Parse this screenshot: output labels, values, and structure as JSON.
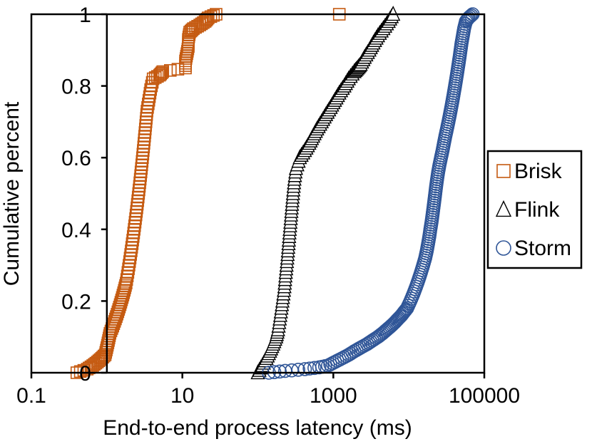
{
  "chart_data": {
    "type": "scatter",
    "title": "",
    "xlabel": "End-to-end process latency (ms)",
    "ylabel": "Cumulative percent",
    "xscale": "log",
    "xlim": [
      0.1,
      100000
    ],
    "ylim": [
      0,
      1
    ],
    "x_ticks": [
      0.1,
      10,
      1000,
      100000
    ],
    "x_tick_labels": [
      "0.1",
      "10",
      "1000",
      "100000"
    ],
    "y_ticks": [
      0,
      0.2,
      0.4,
      0.6,
      0.8,
      1
    ],
    "y_tick_labels": [
      "0",
      "0.2",
      "0.4",
      "0.6",
      "0.8",
      "1"
    ],
    "y_axis_crossing_x": 1,
    "legend_position": "right",
    "series": [
      {
        "name": "Brisk",
        "marker": "square",
        "color": "#C55A11",
        "points": [
          [
            0.4,
            0.0
          ],
          [
            0.55,
            0.01
          ],
          [
            0.65,
            0.02
          ],
          [
            0.75,
            0.03
          ],
          [
            0.85,
            0.04
          ],
          [
            0.95,
            0.05
          ],
          [
            1.0,
            0.07
          ],
          [
            1.05,
            0.09
          ],
          [
            1.1,
            0.11
          ],
          [
            1.2,
            0.13
          ],
          [
            1.3,
            0.15
          ],
          [
            1.4,
            0.17
          ],
          [
            1.5,
            0.19
          ],
          [
            1.6,
            0.21
          ],
          [
            1.7,
            0.23
          ],
          [
            1.8,
            0.25
          ],
          [
            1.9,
            0.28
          ],
          [
            2.0,
            0.31
          ],
          [
            2.1,
            0.34
          ],
          [
            2.2,
            0.37
          ],
          [
            2.3,
            0.4
          ],
          [
            2.4,
            0.43
          ],
          [
            2.5,
            0.46
          ],
          [
            2.6,
            0.49
          ],
          [
            2.7,
            0.52
          ],
          [
            2.8,
            0.55
          ],
          [
            2.9,
            0.58
          ],
          [
            3.0,
            0.61
          ],
          [
            3.1,
            0.64
          ],
          [
            3.2,
            0.67
          ],
          [
            3.3,
            0.7
          ],
          [
            3.4,
            0.73
          ],
          [
            3.6,
            0.76
          ],
          [
            3.8,
            0.79
          ],
          [
            4.1,
            0.82
          ],
          [
            5.0,
            0.83
          ],
          [
            5.5,
            0.84
          ],
          [
            11,
            0.85
          ],
          [
            11,
            0.87
          ],
          [
            11.5,
            0.89
          ],
          [
            12,
            0.91
          ],
          [
            12,
            0.93
          ],
          [
            12.5,
            0.95
          ],
          [
            14,
            0.96
          ],
          [
            17,
            0.97
          ],
          [
            20,
            0.98
          ],
          [
            22,
            0.99
          ],
          [
            28,
            1.0
          ],
          [
            1200,
            1.0
          ]
        ]
      },
      {
        "name": "Flink",
        "marker": "triangle",
        "color": "#000000",
        "points": [
          [
            100,
            0.0
          ],
          [
            115,
            0.02
          ],
          [
            130,
            0.04
          ],
          [
            145,
            0.06
          ],
          [
            160,
            0.08
          ],
          [
            175,
            0.1
          ],
          [
            185,
            0.12
          ],
          [
            195,
            0.15
          ],
          [
            205,
            0.18
          ],
          [
            215,
            0.21
          ],
          [
            225,
            0.24
          ],
          [
            232,
            0.27
          ],
          [
            240,
            0.3
          ],
          [
            248,
            0.33
          ],
          [
            255,
            0.36
          ],
          [
            262,
            0.39
          ],
          [
            270,
            0.42
          ],
          [
            278,
            0.45
          ],
          [
            286,
            0.48
          ],
          [
            295,
            0.51
          ],
          [
            305,
            0.54
          ],
          [
            320,
            0.57
          ],
          [
            360,
            0.6
          ],
          [
            420,
            0.62
          ],
          [
            480,
            0.64
          ],
          [
            540,
            0.66
          ],
          [
            610,
            0.68
          ],
          [
            700,
            0.7
          ],
          [
            800,
            0.72
          ],
          [
            920,
            0.74
          ],
          [
            1050,
            0.76
          ],
          [
            1200,
            0.78
          ],
          [
            1400,
            0.8
          ],
          [
            1600,
            0.82
          ],
          [
            1900,
            0.84
          ],
          [
            2100,
            0.85
          ],
          [
            2300,
            0.86
          ],
          [
            2600,
            0.88
          ],
          [
            3000,
            0.9
          ],
          [
            3400,
            0.92
          ],
          [
            3900,
            0.94
          ],
          [
            4600,
            0.96
          ],
          [
            5400,
            0.98
          ],
          [
            6200,
            1.0
          ]
        ]
      },
      {
        "name": "Storm",
        "marker": "circle",
        "color": "#2F5597",
        "points": [
          [
            140,
            0.0
          ],
          [
            230,
            0.005
          ],
          [
            420,
            0.01
          ],
          [
            650,
            0.015
          ],
          [
            850,
            0.02
          ],
          [
            1050,
            0.03
          ],
          [
            1300,
            0.04
          ],
          [
            1600,
            0.05
          ],
          [
            1900,
            0.06
          ],
          [
            2300,
            0.07
          ],
          [
            2800,
            0.08
          ],
          [
            3300,
            0.09
          ],
          [
            3900,
            0.1
          ],
          [
            4500,
            0.11
          ],
          [
            5100,
            0.12
          ],
          [
            5800,
            0.13
          ],
          [
            6500,
            0.14
          ],
          [
            7200,
            0.15
          ],
          [
            8000,
            0.16
          ],
          [
            8700,
            0.17
          ],
          [
            9500,
            0.18
          ],
          [
            10500,
            0.2
          ],
          [
            11500,
            0.22
          ],
          [
            12500,
            0.24
          ],
          [
            13500,
            0.26
          ],
          [
            14500,
            0.28
          ],
          [
            15500,
            0.3
          ],
          [
            16500,
            0.32
          ],
          [
            17300,
            0.34
          ],
          [
            18000,
            0.36
          ],
          [
            18700,
            0.38
          ],
          [
            19300,
            0.4
          ],
          [
            20000,
            0.42
          ],
          [
            20600,
            0.44
          ],
          [
            21200,
            0.46
          ],
          [
            21800,
            0.48
          ],
          [
            22400,
            0.5
          ],
          [
            23000,
            0.52
          ],
          [
            23700,
            0.54
          ],
          [
            24500,
            0.56
          ],
          [
            25500,
            0.58
          ],
          [
            26700,
            0.6
          ],
          [
            28000,
            0.62
          ],
          [
            29200,
            0.64
          ],
          [
            30500,
            0.66
          ],
          [
            32000,
            0.68
          ],
          [
            33500,
            0.7
          ],
          [
            35000,
            0.72
          ],
          [
            36500,
            0.74
          ],
          [
            38000,
            0.76
          ],
          [
            39500,
            0.78
          ],
          [
            41000,
            0.8
          ],
          [
            42500,
            0.82
          ],
          [
            44000,
            0.84
          ],
          [
            45500,
            0.86
          ],
          [
            47000,
            0.88
          ],
          [
            48500,
            0.9
          ],
          [
            50000,
            0.92
          ],
          [
            52000,
            0.94
          ],
          [
            54000,
            0.96
          ],
          [
            57000,
            0.98
          ],
          [
            62000,
            0.99
          ],
          [
            70000,
            1.0
          ]
        ]
      }
    ]
  }
}
